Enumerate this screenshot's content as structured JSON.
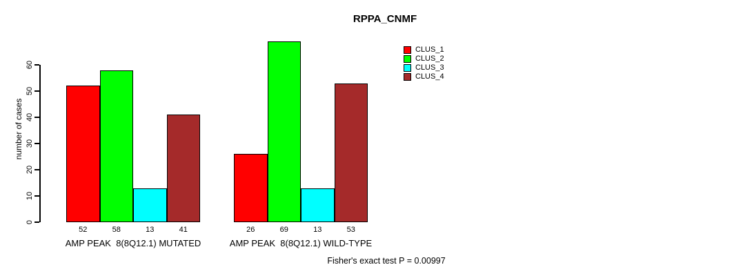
{
  "chart_data": {
    "type": "bar",
    "title": "RPPA_CNMF",
    "ylabel": "number of cases",
    "xlabel": "",
    "ylim": [
      0,
      60
    ],
    "yticks": [
      0,
      10,
      20,
      30,
      40,
      50,
      60
    ],
    "grid": false,
    "legend_position": "right",
    "categories": [
      "AMP PEAK  8(8Q12.1) MUTATED",
      "AMP PEAK  8(8Q12.1) WILD-TYPE"
    ],
    "series": [
      {
        "name": "CLUS_1",
        "color": "#ff0000",
        "values": [
          52,
          26
        ]
      },
      {
        "name": "CLUS_2",
        "color": "#00ff00",
        "values": [
          58,
          69
        ]
      },
      {
        "name": "CLUS_3",
        "color": "#00ffff",
        "values": [
          13,
          13
        ]
      },
      {
        "name": "CLUS_4",
        "color": "#a52a2a",
        "values": [
          41,
          53
        ]
      }
    ],
    "bar_value_labels": [
      [
        52,
        58,
        13,
        41
      ],
      [
        26,
        69,
        13,
        53
      ]
    ],
    "annotation": "Fisher's exact test P = 0.00997"
  }
}
